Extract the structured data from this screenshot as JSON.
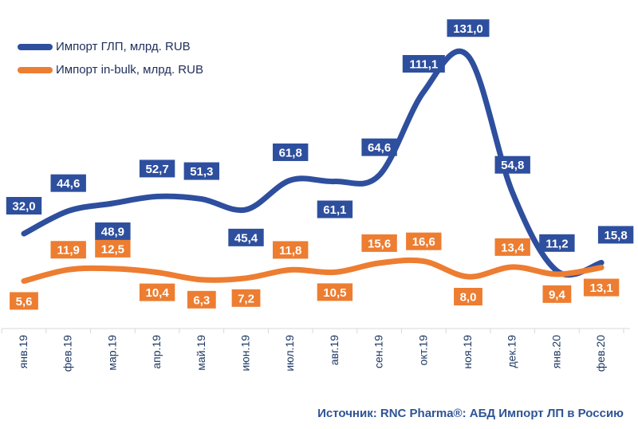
{
  "chart_data": {
    "type": "line",
    "categories": [
      "янв.19",
      "фев.19",
      "мар.19",
      "апр.19",
      "май.19",
      "июн.19",
      "июл.19",
      "авг.19",
      "сен.19",
      "окт.19",
      "ноя.19",
      "дек.19",
      "янв.20",
      "фев.20"
    ],
    "series": [
      {
        "name": "Импорт ГЛП, млрд. RUB",
        "color": "#2e4f9e",
        "label_bg": "#2e4f9e",
        "values": [
          32.0,
          44.6,
          48.9,
          52.7,
          51.3,
          45.4,
          61.8,
          61.1,
          64.6,
          111.1,
          131.0,
          54.8,
          11.2,
          15.8
        ],
        "labels": [
          "32,0",
          "44,6",
          "48,9",
          "52,7",
          "51,3",
          "45,4",
          "61,8",
          "61,1",
          "64,6",
          "111,1",
          "131,0",
          "54,8",
          "11,2",
          "15,8"
        ]
      },
      {
        "name": "Импорт in-bulk, млрд. RUB",
        "color": "#ed7d31",
        "label_bg": "#ed7d31",
        "values": [
          5.6,
          11.9,
          12.5,
          10.4,
          6.3,
          7.2,
          11.8,
          10.5,
          15.6,
          16.6,
          8.0,
          13.4,
          9.4,
          13.1
        ],
        "labels": [
          "5,6",
          "11,9",
          "12,5",
          "10,4",
          "6,3",
          "7,2",
          "11,8",
          "10,5",
          "15,6",
          "16,6",
          "8,0",
          "13,4",
          "9,4",
          "13,1"
        ]
      }
    ],
    "ylim": [
      0,
      140
    ],
    "grid": false,
    "legend": "top-left"
  },
  "source": "Источник: RNC Pharma®: АБД Импорт ЛП в Россию"
}
